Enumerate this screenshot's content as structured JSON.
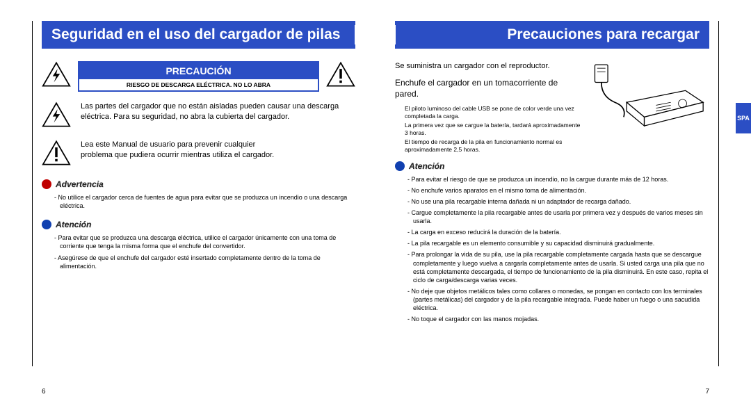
{
  "colors": {
    "brand_blue": "#2b4ec4",
    "warning_red": "#c00000",
    "attention_blue": "#1040b0",
    "text": "#000000",
    "bg": "#ffffff"
  },
  "left": {
    "header": "Seguridad en el uso del cargador de pilas",
    "caution_title": "PRECAUCIÓN",
    "caution_sub": "RIESGO DE DESCARGA ELÉCTRICA. NO LO ABRA",
    "para1": "Las partes del cargador que no están aisladas pueden causar una descarga eléctrica. Para su seguridad, no abra la cubierta del cargador.",
    "para2": "Lea este Manual de usuario para prevenir cualquier",
    "para2b": "problema que pudiera ocurrir mientras utiliza el cargador.",
    "advertencia_label": "Advertencia",
    "advertencia_items": [
      "No utilice el cargador cerca de fuentes de agua para evitar que se produzca un incendio o una descarga eléctrica."
    ],
    "atencion_label": "Atención",
    "atencion_items": [
      "Para evitar que se produzca una descarga eléctrica, utilice el cargador únicamente con una toma de corriente que tenga la misma forma que el enchufe del convertidor.",
      "Asegúrese de que el enchufe del cargador esté insertado completamente dentro de la toma de alimentación."
    ],
    "page_num": "6"
  },
  "right": {
    "header": "Precauciones para recargar",
    "intro1": "Se suministra un cargador con el reproductor.",
    "intro2": "Enchufe el cargador en un tomacorriente de pared.",
    "note1": "El piloto luminoso del cable USB se pone de color verde una vez completada la carga.",
    "note2": "La primera vez que se cargue la batería, tardará aproximadamente 3 horas.",
    "note3": "El tiempo de recarga de la pila en funcionamiento normal es aproximadamente 2,5 horas.",
    "atencion_label": "Atención",
    "atencion_items": [
      "Para evitar el riesgo de que se produzca un incendio, no la cargue durante más de 12 horas.",
      "No enchufe varios aparatos en el mismo toma de alimentación.",
      "No use una pila recargable interna dañada ni un adaptador de recarga dañado.",
      "Cargue completamente la pila recargable antes de usarla por primera vez y después de varios meses sin usarla.",
      "La carga en exceso reducirá la duración de la batería.",
      "La pila recargable es un elemento consumible y su capacidad disminuirá gradualmente.",
      "Para prolongar la vida de su pila, use la pila recargable completamente cargada hasta que se descargue completamente y luego vuelva a cargarla completamente antes de usarla. Si usted carga una pila que no está completamente descargada, el tiempo de funcionamiento de la pila disminuirá. En este caso, repita el ciclo de carga/descarga varias veces.",
      "No deje que objetos metálicos tales como collares o monedas, se pongan en contacto con los terminales (partes metálicas) del cargador y de la pila recargable integrada. Puede haber un fuego o una sacudida eléctrica.",
      "No toque el cargador con las manos mojadas."
    ],
    "side_tab": "SPA",
    "page_num": "7"
  }
}
